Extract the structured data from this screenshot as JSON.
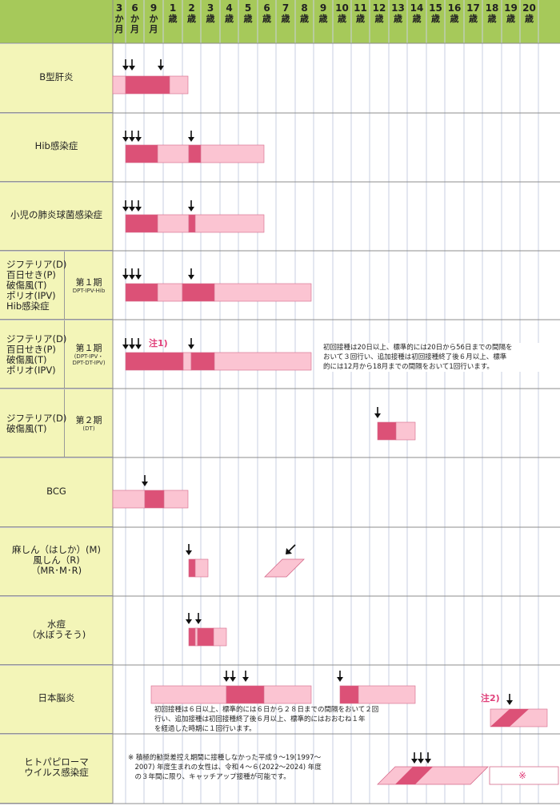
{
  "header": {
    "ages": [
      {
        "num": "3",
        "chars": [
          "か",
          "月"
        ]
      },
      {
        "num": "6",
        "chars": [
          "か",
          "月"
        ]
      },
      {
        "num": "9",
        "chars": [
          "か",
          "月"
        ]
      },
      {
        "num": "1",
        "chars": [
          "歳"
        ]
      },
      {
        "num": "2",
        "chars": [
          "歳"
        ]
      },
      {
        "num": "3",
        "chars": [
          "歳"
        ]
      },
      {
        "num": "4",
        "chars": [
          "歳"
        ]
      },
      {
        "num": "5",
        "chars": [
          "歳"
        ]
      },
      {
        "num": "6",
        "chars": [
          "歳"
        ]
      },
      {
        "num": "7",
        "chars": [
          "歳"
        ]
      },
      {
        "num": "8",
        "chars": [
          "歳"
        ]
      },
      {
        "num": "9",
        "chars": [
          "歳"
        ]
      },
      {
        "num": "10",
        "chars": [
          "歳"
        ]
      },
      {
        "num": "11",
        "chars": [
          "歳"
        ]
      },
      {
        "num": "12",
        "chars": [
          "歳"
        ]
      },
      {
        "num": "13",
        "chars": [
          "歳"
        ]
      },
      {
        "num": "14",
        "chars": [
          "歳"
        ]
      },
      {
        "num": "15",
        "chars": [
          "歳"
        ]
      },
      {
        "num": "16",
        "chars": [
          "歳"
        ]
      },
      {
        "num": "17",
        "chars": [
          "歳"
        ]
      },
      {
        "num": "18",
        "chars": [
          "歳"
        ]
      },
      {
        "num": "19",
        "chars": [
          "歳"
        ]
      },
      {
        "num": "20",
        "chars": [
          "歳"
        ]
      }
    ]
  },
  "rows": [
    {
      "label": "B型肝炎"
    },
    {
      "label": "Hib感染症"
    },
    {
      "label": "小児の肺炎球菌感染症"
    },
    {
      "label": "ジフテリア(D)\n百日せき(P)\n破傷風(T)\nポリオ(IPV)\nHib感染症",
      "sub": "第１期",
      "sub_small": "DPT-IPV-Hib"
    },
    {
      "label": "ジフテリア(D)\n百日せき(P)\n破傷風(T)\nポリオ(IPV)",
      "sub": "第１期",
      "sub_small": "(DPT-IPV・\nDPT-DT-IPV)"
    },
    {
      "label": "ジフテリア(D)\n破傷風(T)",
      "sub": "第２期",
      "sub_small": "(DT)"
    },
    {
      "label": "BCG"
    },
    {
      "label": "麻しん（はしか）(M)\n風しん（R)\n（MR･M･R)"
    },
    {
      "label": "水痘\n（水ぼうそう)"
    },
    {
      "label": "日本脳炎"
    },
    {
      "label": "ヒトパピローマ\nウイルス感染症"
    }
  ],
  "notes": {
    "note1_mark": "注1)",
    "note1": "初回接種は20日以上、標準的には20日から56日までの間隔を\nおいて３回行い、追加接種は初回接種終了後６月以上、標準\n的には12月から18月までの間隔をおいて1回行います。",
    "note2_mark": "注2)",
    "note2": "初回接種は６日以上、標準的には６日から２８日までの間隔をおいて２回\n行い、追加接種は初回接種終了後６月以上、標準的にはおおむね１年\nを経過した時期に１回行います。",
    "note3": "※ 積極的勧奨差控え期間に接種しなかった平成９～19(1997～\n　2007) 年度生まれの女性は、令和４～６(2022～2024) 年度\n　の３年間に限り、キャッチアップ接種が可能です。",
    "star": "※"
  },
  "colors": {
    "header_bg": "#a6c95a",
    "label_bg": "#f3f5b8",
    "light_pink": "#fbc4d2",
    "dark_pink": "#dc5177",
    "note_mark": "#e0407a"
  }
}
